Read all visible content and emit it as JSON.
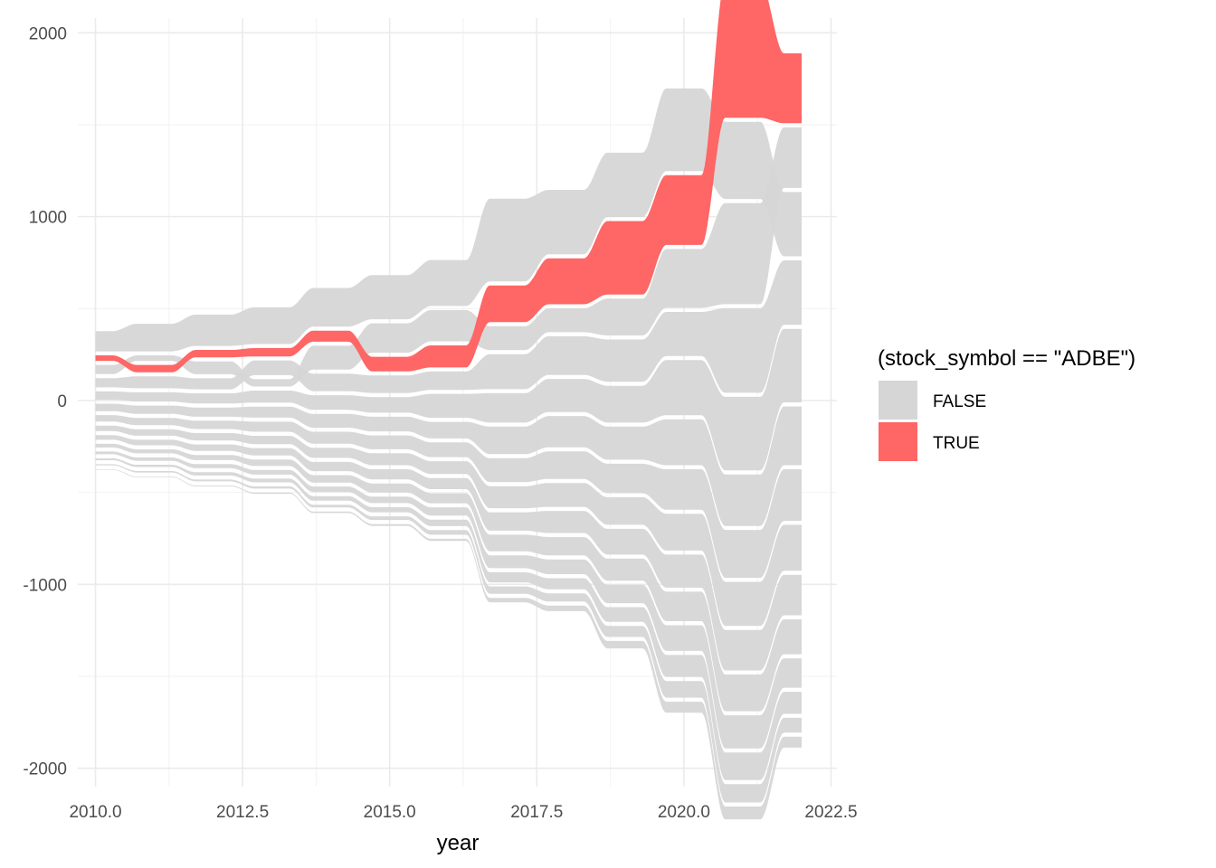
{
  "chart_data": {
    "type": "area",
    "subtype": "bump / stream chart (stacked, centered)",
    "xlabel": "year",
    "ylabel": "",
    "xlim": [
      2009.7,
      2022.6
    ],
    "ylim": [
      -2100,
      2080
    ],
    "x_ticks": [
      2010,
      2012.5,
      2015,
      2017.5,
      2020,
      2022.5
    ],
    "x_tick_labels": [
      "2010.0",
      "2012.5",
      "2015.0",
      "2017.5",
      "2020.0",
      "2022.5"
    ],
    "y_ticks": [
      -2000,
      -1000,
      0,
      1000,
      2000
    ],
    "y_tick_labels": [
      "-2000",
      "-1000",
      "0",
      "1000",
      "2000"
    ],
    "grid": true,
    "years": [
      2010,
      2011,
      2012,
      2013,
      2014,
      2015,
      2016,
      2017,
      2018,
      2019,
      2020,
      2021,
      2022
    ],
    "highlight_color": "#ff6666",
    "base_color": "#d6d6d6",
    "legend": {
      "title": "(stock_symbol == \"ADBE\")",
      "placement": "right",
      "entries": [
        {
          "label": "FALSE",
          "color": "#d6d6d6"
        },
        {
          "label": "TRUE",
          "color": "#ff6666"
        }
      ]
    },
    "series": [
      {
        "flag": "FALSE",
        "values": [
          110,
          150,
          170,
          200,
          210,
          240,
          250,
          450,
          350,
          350,
          450,
          420,
          350
        ],
        "ranks": [
          1,
          1,
          1,
          1,
          1,
          1,
          1,
          1,
          1,
          1,
          1,
          2,
          3
        ]
      },
      {
        "flag": "TRUE",
        "values": [
          30,
          40,
          40,
          45,
          60,
          80,
          120,
          200,
          250,
          400,
          380,
          740,
          380
        ],
        "ranks": [
          2,
          3,
          2,
          2,
          2,
          3,
          3,
          2,
          2,
          2,
          2,
          1,
          1
        ]
      },
      {
        "flag": "FALSE",
        "values": [
          50,
          30,
          70,
          40,
          130,
          160,
          170,
          130,
          130,
          200,
          320,
          550,
          330
        ],
        "ranks": [
          3,
          2,
          3,
          4,
          3,
          2,
          2,
          3,
          3,
          3,
          3,
          3,
          2
        ]
      },
      {
        "flag": "FALSE",
        "values": [
          50,
          65,
          60,
          80,
          95,
          95,
          100,
          190,
          210,
          230,
          240,
          460,
          350
        ],
        "ranks": [
          4,
          4,
          4,
          3,
          4,
          4,
          4,
          4,
          4,
          4,
          4,
          4,
          4
        ]
      },
      {
        "flag": "FALSE",
        "values": [
          45,
          50,
          55,
          65,
          80,
          85,
          130,
          160,
          180,
          200,
          300,
          400,
          400
        ],
        "ranks": [
          5,
          5,
          5,
          5,
          5,
          5,
          5,
          5,
          5,
          5,
          5,
          5,
          5
        ]
      },
      {
        "flag": "FALSE",
        "values": [
          40,
          45,
          50,
          60,
          75,
          80,
          90,
          150,
          170,
          180,
          250,
          280,
          320
        ],
        "ranks": [
          6,
          6,
          6,
          6,
          6,
          6,
          6,
          6,
          6,
          6,
          6,
          6,
          6
        ]
      },
      {
        "flag": "FALSE",
        "values": [
          35,
          40,
          45,
          55,
          65,
          75,
          80,
          130,
          150,
          160,
          220,
          260,
          280
        ],
        "ranks": [
          7,
          7,
          7,
          7,
          7,
          7,
          7,
          7,
          7,
          7,
          7,
          7,
          7
        ]
      },
      {
        "flag": "FALSE",
        "values": [
          30,
          35,
          40,
          45,
          55,
          65,
          70,
          120,
          130,
          150,
          200,
          240,
          250
        ],
        "ranks": [
          8,
          8,
          8,
          8,
          8,
          8,
          8,
          8,
          8,
          8,
          8,
          8,
          8
        ]
      },
      {
        "flag": "FALSE",
        "values": [
          25,
          30,
          35,
          40,
          50,
          55,
          60,
          100,
          120,
          140,
          180,
          220,
          220
        ],
        "ranks": [
          9,
          9,
          9,
          9,
          9,
          9,
          9,
          9,
          9,
          9,
          9,
          9,
          9
        ]
      },
      {
        "flag": "FALSE",
        "values": [
          20,
          22,
          28,
          35,
          40,
          50,
          55,
          90,
          100,
          120,
          160,
          200,
          190
        ],
        "ranks": [
          10,
          10,
          10,
          10,
          10,
          10,
          10,
          10,
          10,
          10,
          10,
          10,
          10
        ]
      },
      {
        "flag": "FALSE",
        "values": [
          15,
          18,
          22,
          25,
          30,
          35,
          45,
          70,
          80,
          100,
          140,
          180,
          160
        ],
        "ranks": [
          11,
          11,
          11,
          11,
          11,
          11,
          11,
          11,
          11,
          11,
          11,
          11,
          11
        ]
      },
      {
        "flag": "FALSE",
        "values": [
          10,
          12,
          18,
          20,
          25,
          28,
          35,
          55,
          60,
          80,
          120,
          150,
          120
        ],
        "ranks": [
          12,
          12,
          12,
          12,
          12,
          12,
          12,
          12,
          12,
          12,
          12,
          12,
          12
        ]
      },
      {
        "flag": "FALSE",
        "values": [
          6,
          8,
          10,
          12,
          15,
          20,
          25,
          40,
          45,
          60,
          90,
          100,
          80
        ],
        "ranks": [
          13,
          13,
          13,
          13,
          13,
          13,
          13,
          13,
          13,
          13,
          13,
          13,
          13
        ]
      },
      {
        "flag": "FALSE",
        "values": [
          3,
          4,
          5,
          6,
          8,
          10,
          12,
          25,
          30,
          40,
          60,
          70,
          60
        ],
        "ranks": [
          14,
          14,
          14,
          14,
          14,
          14,
          14,
          14,
          14,
          14,
          14,
          14,
          14
        ]
      }
    ]
  }
}
